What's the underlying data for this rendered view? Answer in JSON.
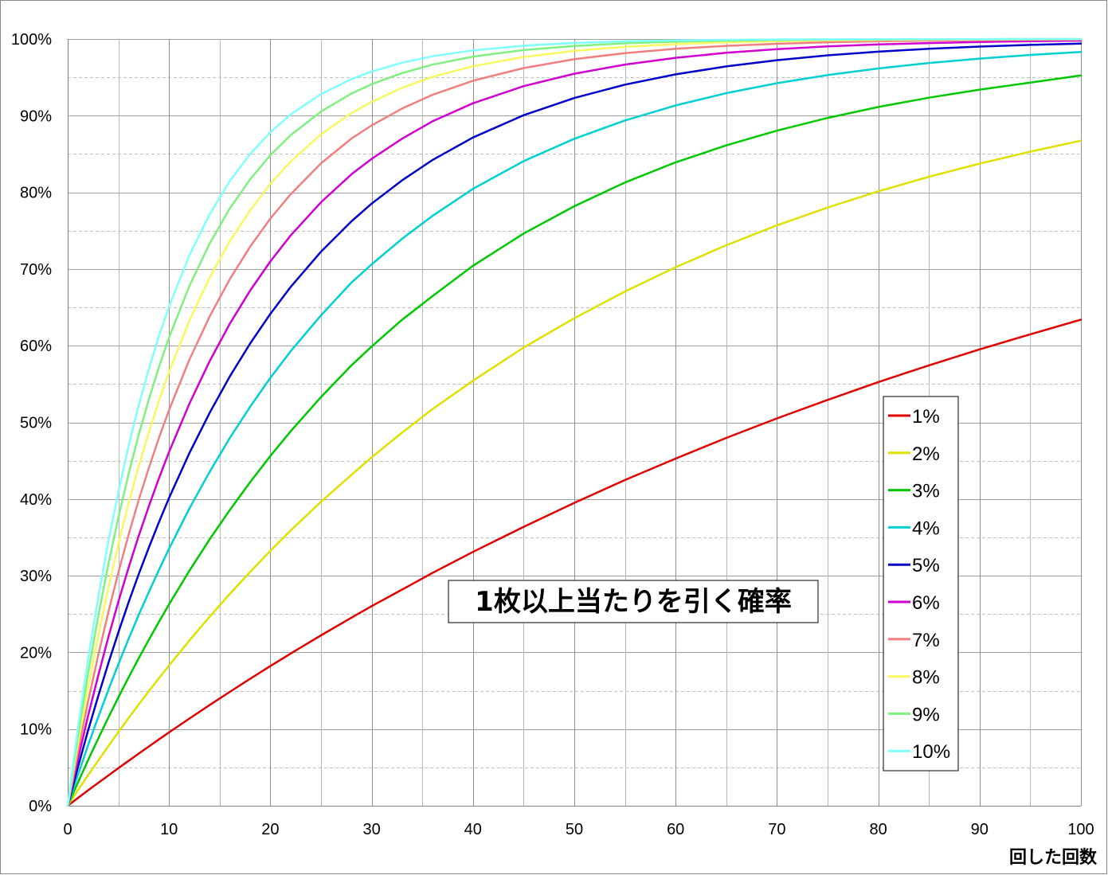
{
  "chart_data": {
    "type": "line",
    "title": "1枚以上当たりを引く確率",
    "xlabel": "回した回数",
    "ylabel": "",
    "xlim": [
      0,
      100
    ],
    "ylim": [
      0,
      1
    ],
    "x_ticks": [
      "0",
      "10",
      "20",
      "30",
      "40",
      "50",
      "60",
      "70",
      "80",
      "90",
      "100"
    ],
    "y_ticks": [
      "0%",
      "10%",
      "20%",
      "30%",
      "40%",
      "50%",
      "60%",
      "70%",
      "80%",
      "90%",
      "100%"
    ],
    "grid": true,
    "legend_position": "right",
    "x": [
      0,
      1,
      2,
      3,
      4,
      5,
      6,
      7,
      8,
      9,
      10,
      12,
      14,
      16,
      18,
      20,
      22,
      25,
      28,
      30,
      33,
      36,
      40,
      45,
      50,
      55,
      60,
      65,
      70,
      75,
      80,
      85,
      90,
      95,
      100
    ],
    "series": [
      {
        "name": "1%",
        "color": "#e00000",
        "per_trial_probability": 0.01,
        "values": [
          0,
          0.01,
          0.0199,
          0.0297,
          0.0394,
          0.049,
          0.0585,
          0.0679,
          0.0773,
          0.0865,
          0.0956,
          0.1136,
          0.1313,
          0.1485,
          0.1655,
          0.1821,
          0.1984,
          0.2222,
          0.2453,
          0.2603,
          0.2819,
          0.3036,
          0.331,
          0.3638,
          0.395,
          0.4248,
          0.4528,
          0.4797,
          0.5052,
          0.5293,
          0.5525,
          0.5744,
          0.5952,
          0.6149,
          0.634
        ]
      },
      {
        "name": "2%",
        "color": "#e0e000",
        "per_trial_probability": 0.02,
        "values": [
          0,
          0.02,
          0.0396,
          0.0588,
          0.0776,
          0.0961,
          0.1142,
          0.1319,
          0.1492,
          0.1663,
          0.1829,
          0.2153,
          0.2464,
          0.2762,
          0.3049,
          0.3324,
          0.3589,
          0.3965,
          0.4316,
          0.4545,
          0.4866,
          0.5172,
          0.5543,
          0.5976,
          0.6358,
          0.6707,
          0.7024,
          0.7311,
          0.7569,
          0.7802,
          0.8014,
          0.8204,
          0.8375,
          0.8531,
          0.8674
        ]
      },
      {
        "name": "3%",
        "color": "#00c800",
        "per_trial_probability": 0.03,
        "values": [
          0,
          0.03,
          0.0591,
          0.0873,
          0.1147,
          0.1413,
          0.167,
          0.192,
          0.2163,
          0.2398,
          0.2626,
          0.3062,
          0.3472,
          0.3857,
          0.422,
          0.4562,
          0.4883,
          0.533,
          0.5744,
          0.599,
          0.6339,
          0.6646,
          0.7043,
          0.7463,
          0.7819,
          0.8129,
          0.8392,
          0.8613,
          0.8805,
          0.8971,
          0.9113,
          0.9235,
          0.934,
          0.9431,
          0.9524
        ]
      },
      {
        "name": "4%",
        "color": "#00d0d0",
        "per_trial_probability": 0.04,
        "values": [
          0,
          0.04,
          0.0784,
          0.1153,
          0.1507,
          0.1846,
          0.2172,
          0.2486,
          0.2786,
          0.3075,
          0.3352,
          0.3873,
          0.4353,
          0.4796,
          0.5204,
          0.558,
          0.5927,
          0.6396,
          0.6823,
          0.7061,
          0.7395,
          0.7693,
          0.8046,
          0.8407,
          0.8699,
          0.8938,
          0.9134,
          0.9294,
          0.9424,
          0.953,
          0.9616,
          0.9687,
          0.9745,
          0.9792,
          0.9831
        ]
      },
      {
        "name": "5%",
        "color": "#0000c8",
        "per_trial_probability": 0.05,
        "values": [
          0,
          0.05,
          0.0975,
          0.1426,
          0.1855,
          0.2262,
          0.2649,
          0.3017,
          0.3366,
          0.3698,
          0.4013,
          0.4596,
          0.5123,
          0.5599,
          0.6028,
          0.6415,
          0.6765,
          0.7226,
          0.7622,
          0.7854,
          0.8157,
          0.8422,
          0.8715,
          0.9006,
          0.9231,
          0.9405,
          0.9539,
          0.9643,
          0.9724,
          0.9787,
          0.9835,
          0.9872,
          0.9901,
          0.9923,
          0.9941
        ]
      },
      {
        "name": "6%",
        "color": "#d000d0",
        "per_trial_probability": 0.06,
        "values": [
          0,
          0.06,
          0.1164,
          0.1694,
          0.2193,
          0.2661,
          0.3101,
          0.3515,
          0.3904,
          0.427,
          0.4614,
          0.524,
          0.5796,
          0.6287,
          0.6719,
          0.7099,
          0.7437,
          0.7871,
          0.8236,
          0.8437,
          0.87,
          0.8926,
          0.9162,
          0.9385,
          0.9547,
          0.9667,
          0.9755,
          0.982,
          0.9868,
          0.9903,
          0.9929,
          0.9947,
          0.9962,
          0.9972,
          0.9979
        ]
      },
      {
        "name": "7%",
        "color": "#f08080",
        "per_trial_probability": 0.07,
        "values": [
          0,
          0.07,
          0.1351,
          0.1956,
          0.2519,
          0.3043,
          0.353,
          0.3983,
          0.4404,
          0.4796,
          0.516,
          0.5814,
          0.6379,
          0.6868,
          0.7291,
          0.7658,
          0.7974,
          0.8379,
          0.8701,
          0.8873,
          0.9093,
          0.9272,
          0.9456,
          0.9621,
          0.9736,
          0.9816,
          0.9872,
          0.9911,
          0.9938,
          0.9957,
          0.997,
          0.9979,
          0.9985,
          0.999,
          0.9993
        ]
      },
      {
        "name": "8%",
        "color": "#f8f860",
        "per_trial_probability": 0.08,
        "values": [
          0,
          0.08,
          0.1536,
          0.2213,
          0.2836,
          0.3409,
          0.3936,
          0.4422,
          0.4868,
          0.5278,
          0.5656,
          0.6323,
          0.6886,
          0.7364,
          0.7765,
          0.8111,
          0.8401,
          0.8757,
          0.9034,
          0.918,
          0.9363,
          0.9508,
          0.9645,
          0.9765,
          0.9845,
          0.9898,
          0.9933,
          0.9956,
          0.9971,
          0.9981,
          0.9987,
          0.9992,
          0.9994,
          0.9996,
          0.9998
        ]
      },
      {
        "name": "9%",
        "color": "#80f080",
        "per_trial_probability": 0.09,
        "values": [
          0,
          0.09,
          0.1719,
          0.2464,
          0.3143,
          0.376,
          0.4321,
          0.4832,
          0.5297,
          0.5721,
          0.6106,
          0.6775,
          0.733,
          0.779,
          0.817,
          0.8485,
          0.8745,
          0.9054,
          0.9289,
          0.9411,
          0.9556,
          0.9666,
          0.977,
          0.9856,
          0.991,
          0.9944,
          0.9965,
          0.9978,
          0.9986,
          0.9992,
          0.9995,
          0.9997,
          0.9998,
          0.9999,
          0.9999
        ]
      },
      {
        "name": "10%",
        "color": "#80ffff",
        "per_trial_probability": 0.1,
        "values": [
          0,
          0.1,
          0.19,
          0.271,
          0.3439,
          0.4095,
          0.4686,
          0.5217,
          0.5695,
          0.6126,
          0.6513,
          0.7176,
          0.7712,
          0.8147,
          0.8499,
          0.8784,
          0.9015,
          0.9282,
          0.9477,
          0.9576,
          0.9691,
          0.9775,
          0.9852,
          0.9913,
          0.9948,
          0.997,
          0.9982,
          0.999,
          0.9994,
          0.9996,
          0.9998,
          0.9999,
          0.9999,
          1.0,
          1.0
        ]
      }
    ]
  }
}
